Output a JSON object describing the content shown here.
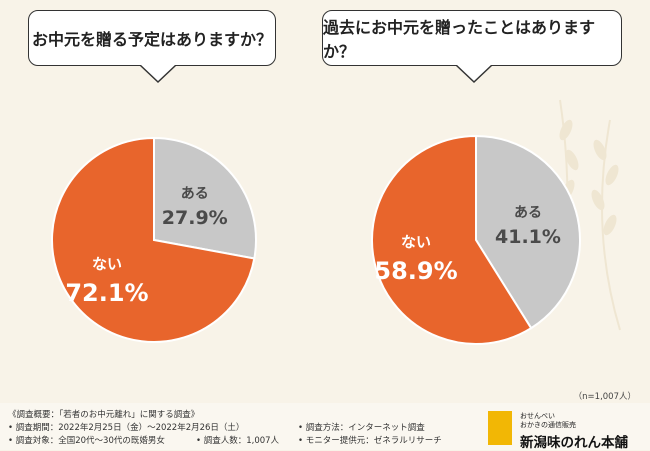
{
  "colors": {
    "nai": "#e8652c",
    "aru": "#c8c8c8",
    "background": "#f8f3e8"
  },
  "chart_data": [
    {
      "type": "pie",
      "title": "お中元を贈る予定はありますか？",
      "slices": [
        {
          "label": "ある",
          "value": 27.9,
          "value_text": "27.9%"
        },
        {
          "label": "ない",
          "value": 72.1,
          "value_text": "72.1%"
        }
      ]
    },
    {
      "type": "pie",
      "title": "過去にお中元を贈ったことはありますか？",
      "slices": [
        {
          "label": "ある",
          "value": 41.1,
          "value_text": "41.1%"
        },
        {
          "label": "ない",
          "value": 58.9,
          "value_text": "58.9%"
        }
      ]
    }
  ],
  "sample_size": "（n=1,007人）",
  "footer": {
    "survey_title": "《調査概要：「若者のお中元離れ」に関する調査》",
    "period": "• 調査期間：2022年2月25日（金）～2022年2月26日（土）",
    "target": "• 調査対象：全国20代～30代の既婚男女",
    "respondents": "• 調査人数：1,007人",
    "method": "• 調査方法：インターネット調査",
    "provider": "• モニター提供元：ゼネラルリサーチ"
  },
  "logo": {
    "line1": "おせんべい",
    "line2": "おかきの通信販売",
    "name": "新潟味のれん本舗"
  }
}
